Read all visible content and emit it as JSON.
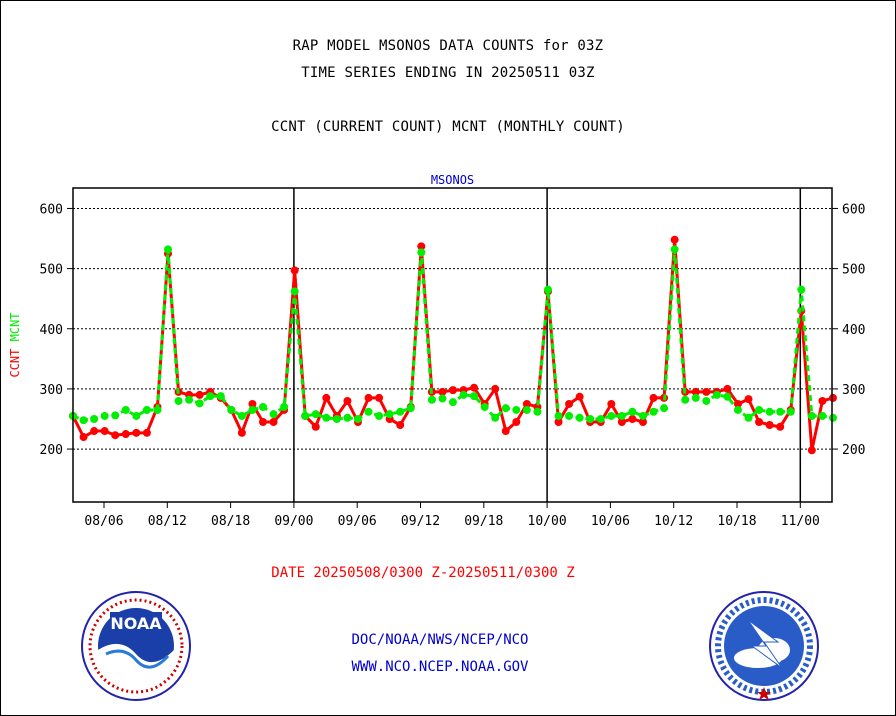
{
  "title_lines": [
    "RAP MODEL MSONOS DATA COUNTS for 03Z",
    "TIME SERIES ENDING IN 20250511 03Z",
    "CCNT (CURRENT COUNT) MCNT (MONTHLY COUNT)"
  ],
  "date_range": "DATE 20250508/0300 Z-20250511/0300 Z",
  "footer": {
    "line1": "DOC/NOAA/NWS/NCEP/NCO",
    "line2": "WWW.NCO.NCEP.NOAA.GOV"
  },
  "logos": {
    "noaa": {
      "text": "NOAA",
      "icon": "noaa-logo-icon"
    },
    "nws": {
      "icon": "nws-logo-icon"
    }
  },
  "colors": {
    "ccnt": "#ff0000",
    "mcnt": "#00ee00",
    "axis": "#000000",
    "plot_title": "#0000cc"
  },
  "chart_data": {
    "type": "line",
    "title": "MSONOS",
    "ylabel_parts": [
      {
        "text": "CCNT",
        "color": "#ff0000"
      },
      {
        "text": "MCNT",
        "color": "#00ee00"
      }
    ],
    "ylim": [
      112,
      634
    ],
    "yticks": [
      200,
      300,
      400,
      500,
      600
    ],
    "grid": "horizontal dotted",
    "x_tick_labels": [
      "08/06",
      "08/12",
      "08/18",
      "09/00",
      "09/06",
      "09/12",
      "09/18",
      "10/00",
      "10/06",
      "10/12",
      "10/18",
      "11/00"
    ],
    "day_boundaries": [
      "09/00",
      "10/00",
      "11/00"
    ],
    "x_step_hours": 1.5,
    "x_start": "08/03",
    "series": [
      {
        "name": "CCNT",
        "color": "#ff0000",
        "values": [
          255,
          220,
          230,
          230,
          223,
          225,
          227,
          227,
          270,
          525,
          295,
          290,
          290,
          295,
          285,
          265,
          227,
          275,
          245,
          245,
          265,
          497,
          255,
          237,
          285,
          255,
          280,
          245,
          285,
          285,
          250,
          240,
          270,
          537,
          295,
          295,
          298,
          298,
          302,
          275,
          300,
          230,
          245,
          275,
          270,
          462,
          245,
          275,
          287,
          245,
          245,
          275,
          245,
          250,
          245,
          285,
          285,
          548,
          295,
          295,
          295,
          295,
          300,
          275,
          283,
          245,
          240,
          237,
          265,
          430,
          198,
          280,
          285
        ]
      },
      {
        "name": "MCNT",
        "color": "#00ee00",
        "values": [
          255,
          248,
          250,
          255,
          256,
          265,
          255,
          265,
          265,
          532,
          280,
          282,
          276,
          288,
          288,
          265,
          255,
          265,
          270,
          258,
          270,
          462,
          255,
          258,
          252,
          250,
          252,
          250,
          262,
          255,
          258,
          262,
          268,
          527,
          282,
          284,
          278,
          290,
          288,
          270,
          252,
          268,
          265,
          265,
          262,
          465,
          255,
          255,
          252,
          250,
          250,
          255,
          255,
          262,
          255,
          262,
          268,
          532,
          282,
          285,
          280,
          290,
          287,
          265,
          252,
          265,
          262,
          262,
          262,
          465,
          255,
          255,
          252
        ]
      }
    ]
  }
}
